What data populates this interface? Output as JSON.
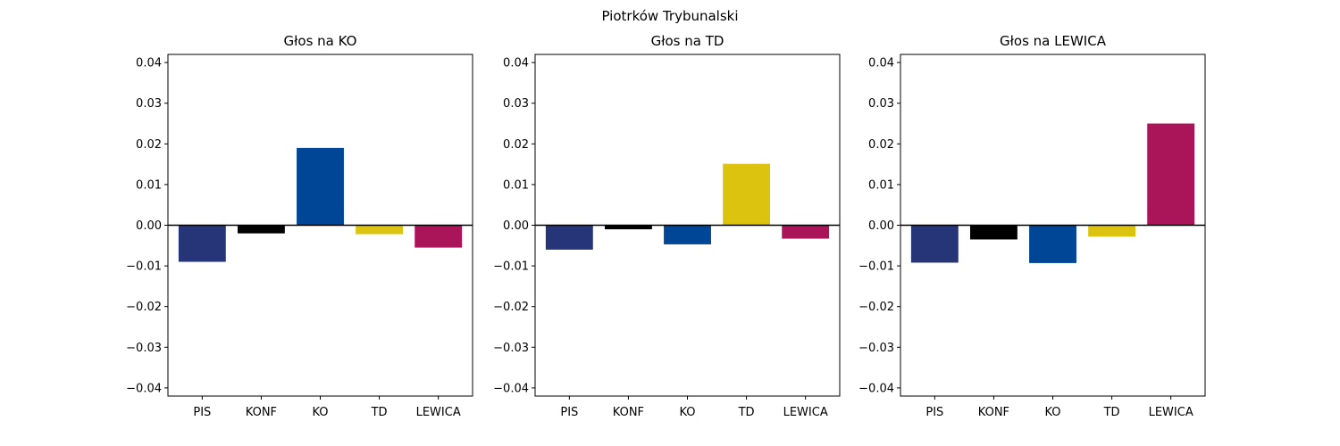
{
  "figure": {
    "suptitle": "Piotrków Trybunalski"
  },
  "chart_data": [
    {
      "type": "bar",
      "title": "Głos na KO",
      "xlabel": "",
      "ylabel": "",
      "categories": [
        "PIS",
        "KONF",
        "KO",
        "TD",
        "LEWICA"
      ],
      "values": [
        -0.009,
        -0.002,
        0.019,
        -0.0022,
        -0.0055
      ],
      "colors": [
        "#263478",
        "#000000",
        "#004696",
        "#dcc30f",
        "#aa1458"
      ],
      "ylim": [
        -0.042,
        0.042
      ],
      "yticks": [
        0.04,
        0.03,
        0.02,
        0.01,
        0.0,
        -0.01,
        -0.02,
        -0.03,
        -0.04
      ],
      "ytick_labels": [
        "0.04",
        "0.03",
        "0.02",
        "0.01",
        "0.00",
        "−0.01",
        "−0.02",
        "−0.03",
        "−0.04"
      ],
      "zero_line": true,
      "grid": false
    },
    {
      "type": "bar",
      "title": "Głos na TD",
      "xlabel": "",
      "ylabel": "",
      "categories": [
        "PIS",
        "KONF",
        "KO",
        "TD",
        "LEWICA"
      ],
      "values": [
        -0.006,
        -0.001,
        -0.0047,
        0.0151,
        -0.0033
      ],
      "colors": [
        "#263478",
        "#000000",
        "#004696",
        "#dcc30f",
        "#aa1458"
      ],
      "ylim": [
        -0.042,
        0.042
      ],
      "yticks": [
        0.04,
        0.03,
        0.02,
        0.01,
        0.0,
        -0.01,
        -0.02,
        -0.03,
        -0.04
      ],
      "ytick_labels": [
        "0.04",
        "0.03",
        "0.02",
        "0.01",
        "0.00",
        "−0.01",
        "−0.02",
        "−0.03",
        "−0.04"
      ],
      "zero_line": true,
      "grid": false
    },
    {
      "type": "bar",
      "title": "Głos na LEWICA",
      "xlabel": "",
      "ylabel": "",
      "categories": [
        "PIS",
        "KONF",
        "KO",
        "TD",
        "LEWICA"
      ],
      "values": [
        -0.0092,
        -0.0035,
        -0.0093,
        -0.0028,
        0.025
      ],
      "colors": [
        "#263478",
        "#000000",
        "#004696",
        "#dcc30f",
        "#aa1458"
      ],
      "ylim": [
        -0.042,
        0.042
      ],
      "yticks": [
        0.04,
        0.03,
        0.02,
        0.01,
        0.0,
        -0.01,
        -0.02,
        -0.03,
        -0.04
      ],
      "ytick_labels": [
        "0.04",
        "0.03",
        "0.02",
        "0.01",
        "0.00",
        "−0.01",
        "−0.02",
        "−0.03",
        "−0.04"
      ],
      "zero_line": true,
      "grid": false
    }
  ]
}
